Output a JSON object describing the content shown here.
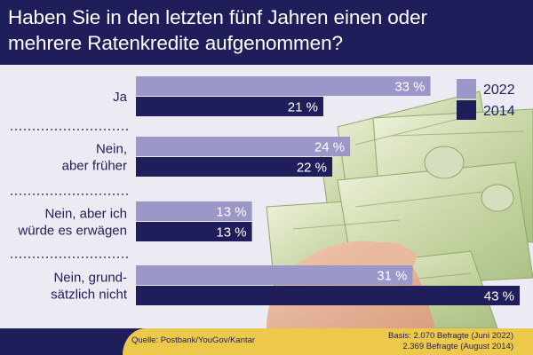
{
  "title": {
    "line1": "Haben Sie in den letzten fünf Jahren einen oder",
    "line2": "mehrere Ratenkredite aufgenommen?"
  },
  "colors": {
    "header_bg": "#1f1e5a",
    "series_2022": "#9c97c9",
    "series_2014": "#1f1e5a",
    "footer_accent": "#ecc94b"
  },
  "chart_data": {
    "type": "bar",
    "orientation": "horizontal",
    "categories": [
      [
        "Ja"
      ],
      [
        "Nein,",
        "aber früher"
      ],
      [
        "Nein, aber ich",
        "würde es erwägen"
      ],
      [
        "Nein, grund-",
        "sätzlich nicht"
      ]
    ],
    "series": [
      {
        "name": "2022",
        "values": [
          33,
          24,
          13,
          31
        ],
        "labels": [
          "33 %",
          "24 %",
          "13 %",
          "31 %"
        ],
        "color": "#9c97c9"
      },
      {
        "name": "2014",
        "values": [
          21,
          22,
          13,
          43
        ],
        "labels": [
          "21 %",
          "22 %",
          "13 %",
          "43 %"
        ],
        "color": "#1f1e5a"
      }
    ],
    "unit": "%",
    "xlim": [
      0,
      43
    ],
    "legend": {
      "position": "top-right",
      "entries": [
        "2022",
        "2014"
      ]
    },
    "grid": false
  },
  "footer": {
    "source": "Quelle: Postbank/YouGov/Kantar",
    "basis_line1": "Basis: 2.070 Befragte (Juni 2022)",
    "basis_line2": "2.369 Befragte (August 2014)"
  }
}
